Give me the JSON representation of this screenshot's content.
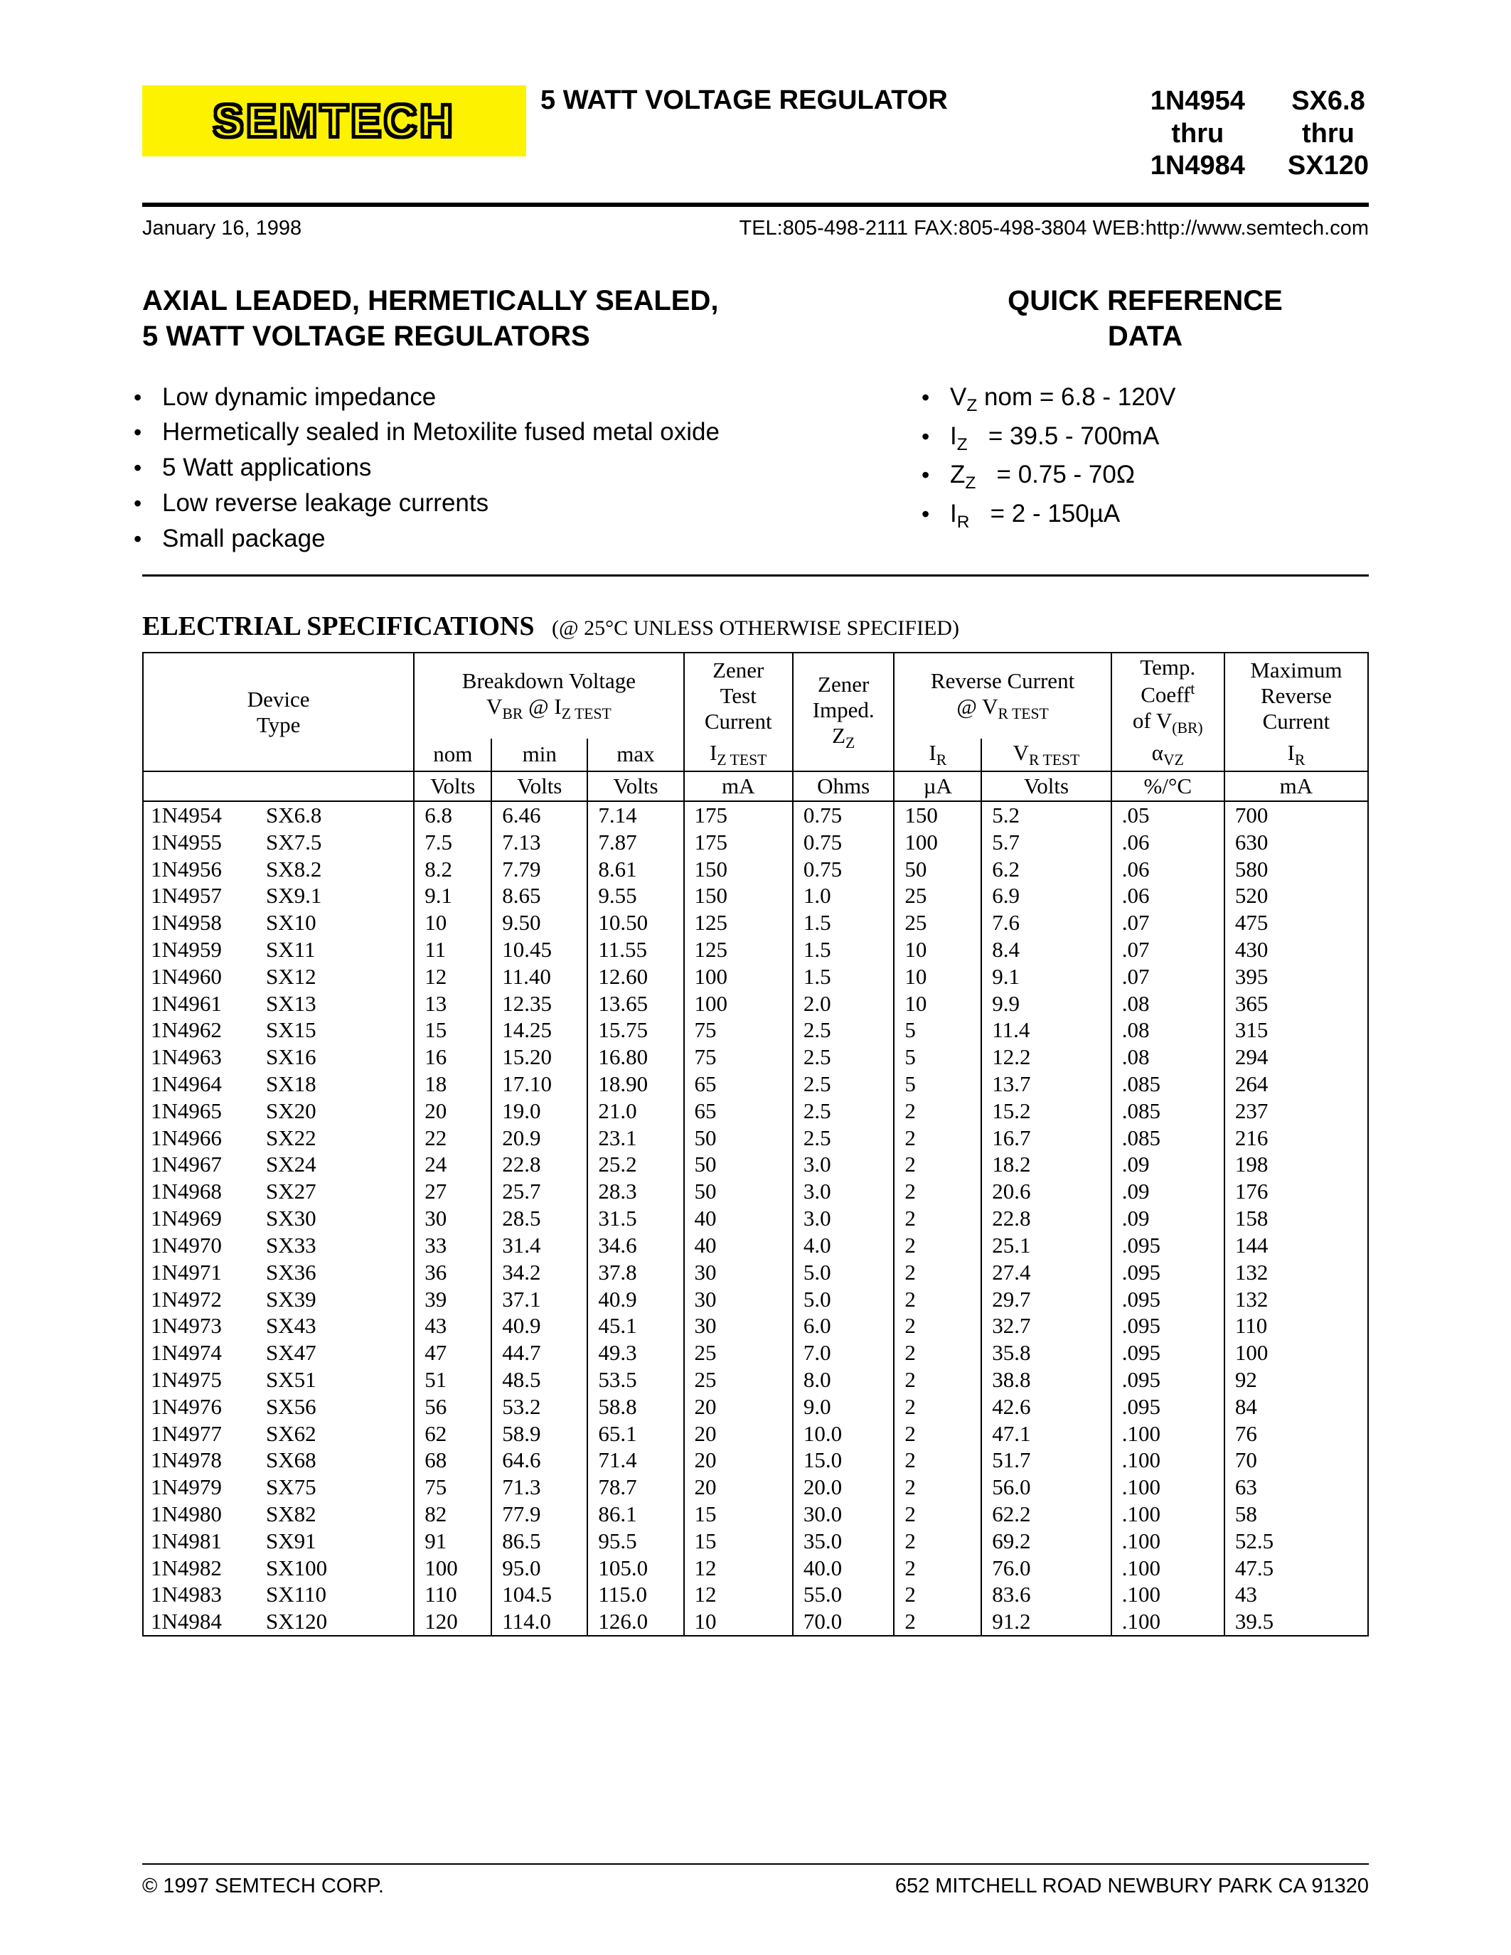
{
  "header": {
    "logo_text": "SEMTECH",
    "product_title": "5 WATT VOLTAGE REGULATOR",
    "parts1_top": "1N4954",
    "parts1_mid": "thru",
    "parts1_bot": "1N4984",
    "parts2_top": "SX6.8",
    "parts2_mid": "thru",
    "parts2_bot": "SX120"
  },
  "contact": {
    "date": "January 16, 1998",
    "info": "TEL:805-498-2111 FAX:805-498-3804 WEB:http://www.semtech.com"
  },
  "sections": {
    "features_heading_l1": "AXIAL LEADED, HERMETICALLY SEALED,",
    "features_heading_l2": "5 WATT VOLTAGE REGULATORS",
    "quick_heading_l1": "QUICK REFERENCE",
    "quick_heading_l2": "DATA"
  },
  "features": [
    "Low dynamic impedance",
    "Hermetically sealed in Metoxilite fused metal oxide",
    "5 Watt applications",
    "Low reverse leakage currents",
    "Small package"
  ],
  "quick": [
    "V<sub>Z</sub> nom = 6.8 - 120V",
    "I<sub>Z</sub>&nbsp;&nbsp;&nbsp;= 39.5 - 700mA",
    "Z<sub>Z</sub>&nbsp;&nbsp;&nbsp;= 0.75 - 70Ω",
    "I<sub>R</sub>&nbsp;&nbsp;&nbsp;= 2 - 150µA"
  ],
  "spec": {
    "heading": "ELECTRIAL SPECIFICATIONS",
    "sub": "(@ 25°C UNLESS OTHERWISE SPECIFIED)",
    "group_headers": {
      "device": "Device<br>Type",
      "breakdown": "Breakdown Voltage<br>V<sub>BR</sub> @ I<sub>Z TEST</sub>",
      "zener_test": "Zener<br>Test<br>Current",
      "zener_imp": "Zener<br>Imped.<br>Z<sub>Z</sub>",
      "reverse": "Reverse Current<br>@ V<sub>R TEST</sub>",
      "temp": "Temp.<br>Coeff<sup>t</sup><br>of V<sub>(BR)</sub>",
      "max_rev": "Maximum<br>Reverse<br>Current"
    },
    "sub_headers": [
      "",
      "nom",
      "min",
      "max",
      "I<sub>Z TEST</sub>",
      "",
      "I<sub>R</sub>",
      "V<sub>R TEST</sub>",
      "α<sub>VZ</sub>",
      "I<sub>R</sub>"
    ],
    "units": [
      "",
      "Volts",
      "Volts",
      "Volts",
      "mA",
      "Ohms",
      "µA",
      "Volts",
      "%/°C",
      "mA"
    ],
    "rows": [
      [
        "1N4954",
        "SX6.8",
        "6.8",
        "6.46",
        "7.14",
        "175",
        "0.75",
        "150",
        "5.2",
        ".05",
        "700"
      ],
      [
        "1N4955",
        "SX7.5",
        "7.5",
        "7.13",
        "7.87",
        "175",
        "0.75",
        "100",
        "5.7",
        ".06",
        "630"
      ],
      [
        "1N4956",
        "SX8.2",
        "8.2",
        "7.79",
        "8.61",
        "150",
        "0.75",
        "50",
        "6.2",
        ".06",
        "580"
      ],
      [
        "1N4957",
        "SX9.1",
        "9.1",
        "8.65",
        "9.55",
        "150",
        "1.0",
        "25",
        "6.9",
        ".06",
        "520"
      ],
      [
        "1N4958",
        "SX10",
        "10",
        "9.50",
        "10.50",
        "125",
        "1.5",
        "25",
        "7.6",
        ".07",
        "475"
      ],
      [
        "1N4959",
        "SX11",
        "11",
        "10.45",
        "11.55",
        "125",
        "1.5",
        "10",
        "8.4",
        ".07",
        "430"
      ],
      [
        "1N4960",
        "SX12",
        "12",
        "11.40",
        "12.60",
        "100",
        "1.5",
        "10",
        "9.1",
        ".07",
        "395"
      ],
      [
        "1N4961",
        "SX13",
        "13",
        "12.35",
        "13.65",
        "100",
        "2.0",
        "10",
        "9.9",
        ".08",
        "365"
      ],
      [
        "1N4962",
        "SX15",
        "15",
        "14.25",
        "15.75",
        "75",
        "2.5",
        "5",
        "11.4",
        ".08",
        "315"
      ],
      [
        "1N4963",
        "SX16",
        "16",
        "15.20",
        "16.80",
        "75",
        "2.5",
        "5",
        "12.2",
        ".08",
        "294"
      ],
      [
        "1N4964",
        "SX18",
        "18",
        "17.10",
        "18.90",
        "65",
        "2.5",
        "5",
        "13.7",
        ".085",
        "264"
      ],
      [
        "1N4965",
        "SX20",
        "20",
        "19.0",
        "21.0",
        "65",
        "2.5",
        "2",
        "15.2",
        ".085",
        "237"
      ],
      [
        "1N4966",
        "SX22",
        "22",
        "20.9",
        "23.1",
        "50",
        "2.5",
        "2",
        "16.7",
        ".085",
        "216"
      ],
      [
        "1N4967",
        "SX24",
        "24",
        "22.8",
        "25.2",
        "50",
        "3.0",
        "2",
        "18.2",
        ".09",
        "198"
      ],
      [
        "1N4968",
        "SX27",
        "27",
        "25.7",
        "28.3",
        "50",
        "3.0",
        "2",
        "20.6",
        ".09",
        "176"
      ],
      [
        "1N4969",
        "SX30",
        "30",
        "28.5",
        "31.5",
        "40",
        "3.0",
        "2",
        "22.8",
        ".09",
        "158"
      ],
      [
        "1N4970",
        "SX33",
        "33",
        "31.4",
        "34.6",
        "40",
        "4.0",
        "2",
        "25.1",
        ".095",
        "144"
      ],
      [
        "1N4971",
        "SX36",
        "36",
        "34.2",
        "37.8",
        "30",
        "5.0",
        "2",
        "27.4",
        ".095",
        "132"
      ],
      [
        "1N4972",
        "SX39",
        "39",
        "37.1",
        "40.9",
        "30",
        "5.0",
        "2",
        "29.7",
        ".095",
        "132"
      ],
      [
        "1N4973",
        "SX43",
        "43",
        "40.9",
        "45.1",
        "30",
        "6.0",
        "2",
        "32.7",
        ".095",
        "110"
      ],
      [
        "1N4974",
        "SX47",
        "47",
        "44.7",
        "49.3",
        "25",
        "7.0",
        "2",
        "35.8",
        ".095",
        "100"
      ],
      [
        "1N4975",
        "SX51",
        "51",
        "48.5",
        "53.5",
        "25",
        "8.0",
        "2",
        "38.8",
        ".095",
        "92"
      ],
      [
        "1N4976",
        "SX56",
        "56",
        "53.2",
        "58.8",
        "20",
        "9.0",
        "2",
        "42.6",
        ".095",
        "84"
      ],
      [
        "1N4977",
        "SX62",
        "62",
        "58.9",
        "65.1",
        "20",
        "10.0",
        "2",
        "47.1",
        ".100",
        "76"
      ],
      [
        "1N4978",
        "SX68",
        "68",
        "64.6",
        "71.4",
        "20",
        "15.0",
        "2",
        "51.7",
        ".100",
        "70"
      ],
      [
        "1N4979",
        "SX75",
        "75",
        "71.3",
        "78.7",
        "20",
        "20.0",
        "2",
        "56.0",
        ".100",
        "63"
      ],
      [
        "1N4980",
        "SX82",
        "82",
        "77.9",
        "86.1",
        "15",
        "30.0",
        "2",
        "62.2",
        ".100",
        "58"
      ],
      [
        "1N4981",
        "SX91",
        "91",
        "86.5",
        "95.5",
        "15",
        "35.0",
        "2",
        "69.2",
        ".100",
        "52.5"
      ],
      [
        "1N4982",
        "SX100",
        "100",
        "95.0",
        "105.0",
        "12",
        "40.0",
        "2",
        "76.0",
        ".100",
        "47.5"
      ],
      [
        "1N4983",
        "SX110",
        "110",
        "104.5",
        "115.0",
        "12",
        "55.0",
        "2",
        "83.6",
        ".100",
        "43"
      ],
      [
        "1N4984",
        "SX120",
        "120",
        "114.0",
        "126.0",
        "10",
        "70.0",
        "2",
        "91.2",
        ".100",
        "39.5"
      ]
    ]
  },
  "footer": {
    "copyright": "© 1997 SEMTECH CORP.",
    "address": "652 MITCHELL ROAD  NEWBURY PARK  CA 91320"
  },
  "style": {
    "logo_bg": "#fdf200",
    "text_color": "#000000",
    "page_bg": "#ffffff"
  }
}
